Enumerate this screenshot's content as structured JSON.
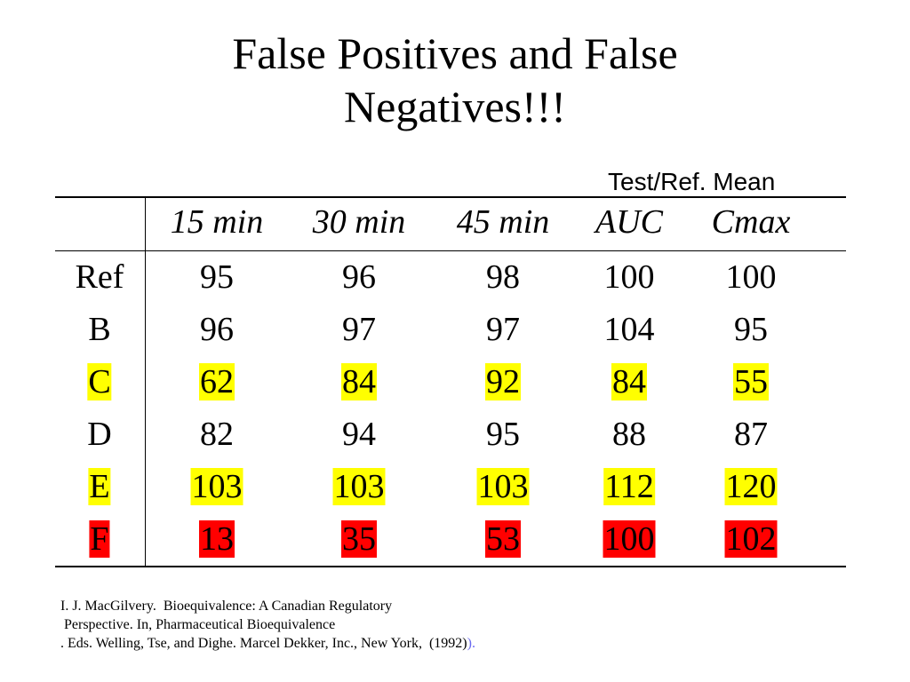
{
  "title_lines": [
    "False Positives and False",
    "Negatives!!!"
  ],
  "table_caption": "Test/Ref. Mean",
  "table": {
    "columns": [
      "15 min",
      "30 min",
      "45 min",
      "AUC",
      "Cmax"
    ],
    "rows": [
      {
        "label": "Ref",
        "values": [
          "95",
          "96",
          "98",
          "100",
          "100"
        ],
        "highlight": "none"
      },
      {
        "label": "B",
        "values": [
          "96",
          "97",
          "97",
          "104",
          "95"
        ],
        "highlight": "none"
      },
      {
        "label": "C",
        "values": [
          "62",
          "84",
          "92",
          "84",
          "55"
        ],
        "highlight": "yellow"
      },
      {
        "label": "D",
        "values": [
          "82",
          "94",
          "95",
          "88",
          "87"
        ],
        "highlight": "none"
      },
      {
        "label": "E",
        "values": [
          "103",
          "103",
          "103",
          "112",
          "120"
        ],
        "highlight": "yellow"
      },
      {
        "label": "F",
        "values": [
          "13",
          "35",
          "53",
          "100",
          "102"
        ],
        "highlight": "red"
      }
    ]
  },
  "highlight_colors": {
    "yellow": "#ffff00",
    "red": "#ff0000"
  },
  "reference": {
    "line1": "I. J. MacGilvery.  Bioequivalence: A Canadian Regulatory",
    "line2": " Perspective. In, Pharmaceutical Bioequivalence",
    "line3": ". Eds. Welling, Tse, and Dighe. Marcel Dekker, Inc., New York,  (1992)",
    "line3_tail": ")."
  }
}
